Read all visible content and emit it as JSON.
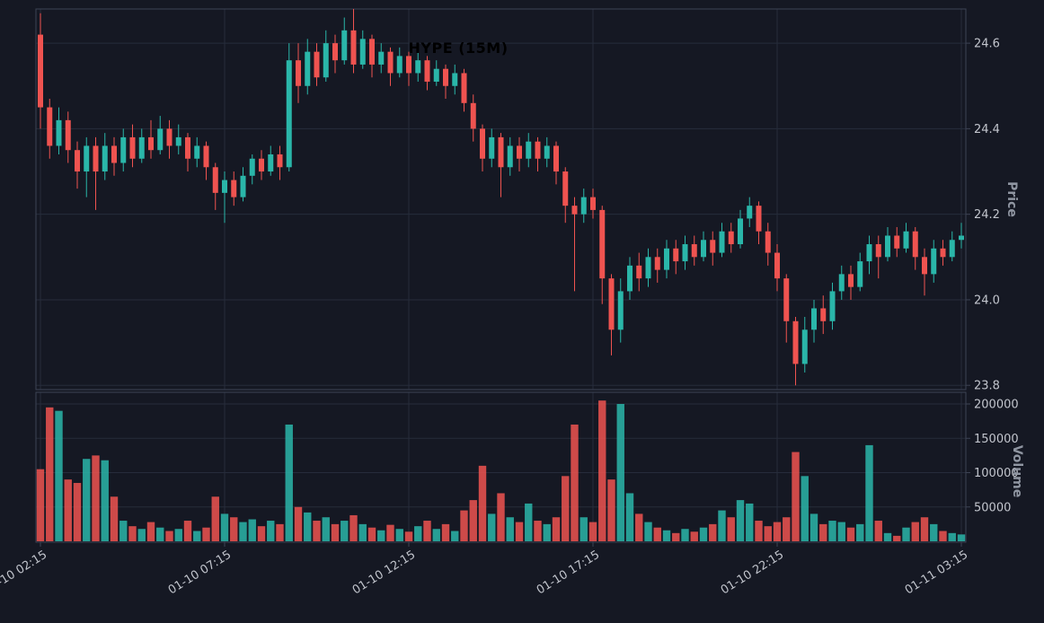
{
  "colors": {
    "background": "#151823",
    "up": "#2ab6a9",
    "down": "#ef5350",
    "grid": "#262c3b",
    "spine": "#3d4354",
    "tick_text": "#c2c5cd",
    "axis_label_text": "#8f95a1",
    "title_text": "#000000"
  },
  "chart_data": {
    "type": "candlestick",
    "title": "HYPE (15M)",
    "symbol": "HYPE",
    "interval": "15M",
    "price_axis_label": "Price",
    "volume_axis_label": "Volume",
    "legend_position": "none",
    "grid": true,
    "price_ticks": [
      24.6,
      24.4,
      24.2,
      24.0,
      23.8
    ],
    "price_range": [
      23.79,
      24.68
    ],
    "volume_ticks": [
      200000,
      150000,
      100000,
      50000
    ],
    "volume_range": [
      0,
      217000
    ],
    "x_tick_labels": [
      "01-10 02:15",
      "01-10 07:15",
      "01-10 12:15",
      "01-10 17:15",
      "01-10 22:15",
      "01-11 03:15"
    ],
    "x_tick_indices": [
      0,
      20,
      40,
      60,
      80,
      100
    ],
    "candles": {
      "open": [
        24.62,
        24.45,
        24.36,
        24.42,
        24.35,
        24.3,
        24.36,
        24.3,
        24.36,
        24.32,
        24.38,
        24.33,
        24.38,
        24.35,
        24.4,
        24.36,
        24.38,
        24.33,
        24.36,
        24.31,
        24.25,
        24.28,
        24.24,
        24.29,
        24.33,
        24.3,
        24.34,
        24.31,
        24.56,
        24.5,
        24.58,
        24.52,
        24.6,
        24.56,
        24.63,
        24.55,
        24.61,
        24.55,
        24.58,
        24.53,
        24.57,
        24.53,
        24.56,
        24.51,
        24.54,
        24.5,
        24.53,
        24.46,
        24.4,
        24.33,
        24.38,
        24.31,
        24.36,
        24.33,
        24.37,
        24.33,
        24.36,
        24.3,
        24.22,
        24.2,
        24.24,
        24.21,
        24.05,
        23.93,
        24.02,
        24.08,
        24.05,
        24.1,
        24.07,
        24.12,
        24.09,
        24.13,
        24.1,
        24.14,
        24.11,
        24.16,
        24.13,
        24.19,
        24.22,
        24.16,
        24.11,
        24.05,
        23.95,
        23.85,
        23.93,
        23.98,
        23.95,
        24.02,
        24.06,
        24.03,
        24.09,
        24.13,
        24.1,
        24.15,
        24.12,
        24.16,
        24.1,
        24.06,
        24.12,
        24.1,
        24.14
      ],
      "high": [
        24.67,
        24.47,
        24.45,
        24.44,
        24.37,
        24.38,
        24.38,
        24.39,
        24.38,
        24.4,
        24.41,
        24.4,
        24.42,
        24.43,
        24.42,
        24.41,
        24.39,
        24.38,
        24.37,
        24.32,
        24.3,
        24.3,
        24.31,
        24.34,
        24.35,
        24.36,
        24.36,
        24.6,
        24.6,
        24.61,
        24.6,
        24.63,
        24.62,
        24.66,
        24.68,
        24.63,
        24.62,
        24.6,
        24.59,
        24.59,
        24.58,
        24.58,
        24.57,
        24.56,
        24.55,
        24.55,
        24.54,
        24.48,
        24.41,
        24.4,
        24.39,
        24.38,
        24.38,
        24.39,
        24.38,
        24.38,
        24.37,
        24.31,
        24.24,
        24.26,
        24.26,
        24.22,
        24.06,
        24.05,
        24.1,
        24.11,
        24.12,
        24.12,
        24.14,
        24.14,
        24.15,
        24.15,
        24.16,
        24.16,
        24.18,
        24.18,
        24.21,
        24.24,
        24.23,
        24.18,
        24.13,
        24.06,
        23.96,
        23.96,
        24.0,
        24.01,
        24.04,
        24.08,
        24.08,
        24.11,
        24.15,
        24.15,
        24.17,
        24.17,
        24.18,
        24.17,
        24.12,
        24.14,
        24.14,
        24.16,
        24.18
      ],
      "low": [
        24.4,
        24.33,
        24.34,
        24.32,
        24.26,
        24.24,
        24.21,
        24.28,
        24.29,
        24.3,
        24.31,
        24.32,
        24.33,
        24.34,
        24.33,
        24.34,
        24.3,
        24.31,
        24.28,
        24.21,
        24.18,
        24.22,
        24.23,
        24.27,
        24.28,
        24.29,
        24.28,
        24.3,
        24.46,
        24.48,
        24.5,
        24.51,
        24.53,
        24.55,
        24.53,
        24.54,
        24.52,
        24.53,
        24.5,
        24.52,
        24.5,
        24.51,
        24.49,
        24.5,
        24.47,
        24.48,
        24.44,
        24.37,
        24.3,
        24.31,
        24.24,
        24.29,
        24.3,
        24.31,
        24.3,
        24.31,
        24.27,
        24.18,
        24.02,
        24.18,
        24.19,
        23.99,
        23.87,
        23.9,
        24.0,
        24.02,
        24.03,
        24.04,
        24.05,
        24.06,
        24.07,
        24.08,
        24.09,
        24.08,
        24.1,
        24.11,
        24.12,
        24.17,
        24.13,
        24.08,
        24.02,
        23.9,
        23.8,
        23.83,
        23.9,
        23.92,
        23.93,
        24.0,
        24.0,
        24.02,
        24.06,
        24.05,
        24.09,
        24.1,
        24.11,
        24.07,
        24.01,
        24.04,
        24.08,
        24.09,
        24.12
      ],
      "close": [
        24.45,
        24.36,
        24.42,
        24.35,
        24.3,
        24.36,
        24.3,
        24.36,
        24.32,
        24.38,
        24.33,
        24.38,
        24.35,
        24.4,
        24.36,
        24.38,
        24.33,
        24.36,
        24.31,
        24.25,
        24.28,
        24.24,
        24.29,
        24.33,
        24.3,
        24.34,
        24.31,
        24.56,
        24.5,
        24.58,
        24.52,
        24.6,
        24.56,
        24.63,
        24.55,
        24.61,
        24.55,
        24.58,
        24.53,
        24.57,
        24.53,
        24.56,
        24.51,
        24.54,
        24.5,
        24.53,
        24.46,
        24.4,
        24.33,
        24.38,
        24.31,
        24.36,
        24.33,
        24.37,
        24.33,
        24.36,
        24.3,
        24.22,
        24.2,
        24.24,
        24.21,
        24.05,
        23.93,
        24.02,
        24.08,
        24.05,
        24.1,
        24.07,
        24.12,
        24.09,
        24.13,
        24.1,
        24.14,
        24.11,
        24.16,
        24.13,
        24.19,
        24.22,
        24.16,
        24.11,
        24.05,
        23.95,
        23.85,
        23.93,
        23.98,
        23.95,
        24.02,
        24.06,
        24.03,
        24.09,
        24.13,
        24.1,
        24.15,
        24.12,
        24.16,
        24.1,
        24.06,
        24.12,
        24.1,
        24.14,
        24.15
      ],
      "volume": [
        105000,
        195000,
        190000,
        90000,
        85000,
        120000,
        125000,
        118000,
        65000,
        30000,
        22000,
        18000,
        28000,
        20000,
        15000,
        18000,
        30000,
        15000,
        20000,
        65000,
        40000,
        35000,
        28000,
        32000,
        22000,
        30000,
        25000,
        170000,
        50000,
        42000,
        30000,
        35000,
        25000,
        30000,
        38000,
        25000,
        20000,
        16000,
        24000,
        18000,
        14000,
        22000,
        30000,
        18000,
        25000,
        15000,
        45000,
        60000,
        110000,
        40000,
        70000,
        35000,
        28000,
        55000,
        30000,
        25000,
        35000,
        95000,
        170000,
        35000,
        28000,
        205000,
        90000,
        200000,
        70000,
        40000,
        28000,
        20000,
        16000,
        12000,
        18000,
        14000,
        20000,
        25000,
        45000,
        35000,
        60000,
        55000,
        30000,
        22000,
        28000,
        35000,
        130000,
        95000,
        40000,
        25000,
        30000,
        28000,
        20000,
        25000,
        140000,
        30000,
        12000,
        8000,
        20000,
        28000,
        35000,
        25000,
        15000,
        12000,
        10000
      ]
    }
  }
}
